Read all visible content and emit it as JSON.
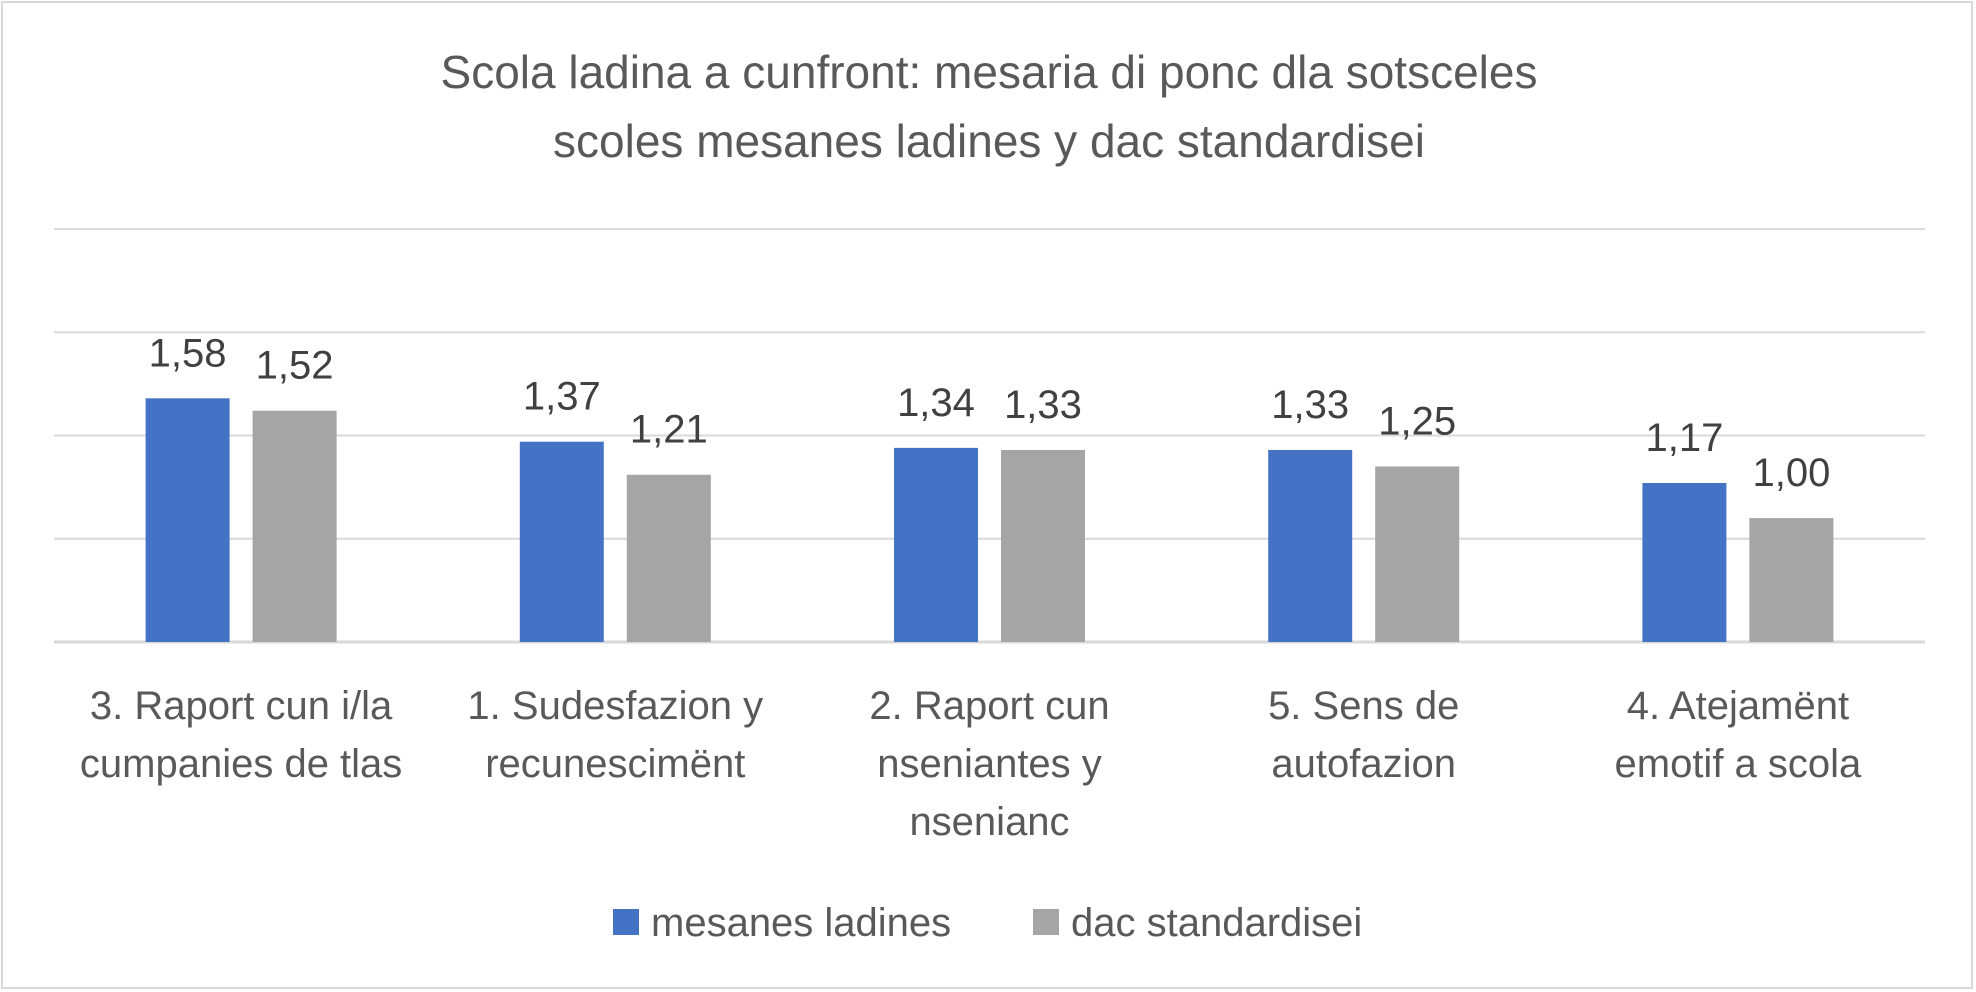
{
  "chart_data": {
    "type": "bar",
    "title": [
      "Scola ladina a cunfront: mesaria di ponc dla sotsceles",
      "scoles mesanes ladines y dac standardisei"
    ],
    "categories": [
      [
        "3. Raport cun i/la",
        "cumpanies de tlas"
      ],
      [
        "1. Sudesfazion y",
        "recunescimënt"
      ],
      [
        "2. Raport cun",
        "nseniantes y",
        "nsenianc"
      ],
      [
        "5. Sens de",
        "autofazion"
      ],
      [
        "4. Atejamënt",
        "emotif a scola"
      ]
    ],
    "series": [
      {
        "name": "mesanes ladines",
        "color": "#4472c4",
        "values": [
          1.58,
          1.37,
          1.34,
          1.33,
          1.17
        ],
        "labels": [
          "1,58",
          "1,37",
          "1,34",
          "1,33",
          "1,17"
        ]
      },
      {
        "name": "dac standardisei",
        "color": "#a5a5a5",
        "values": [
          1.52,
          1.21,
          1.33,
          1.25,
          1.0
        ],
        "labels": [
          "1,52",
          "1,21",
          "1,33",
          "1,25",
          "1,00"
        ]
      }
    ],
    "ylim": [
      0.4,
      2.4
    ],
    "gridlines": [
      0.4,
      0.9,
      1.4,
      1.9,
      2.4
    ],
    "grid": true,
    "legend": "bottom"
  }
}
